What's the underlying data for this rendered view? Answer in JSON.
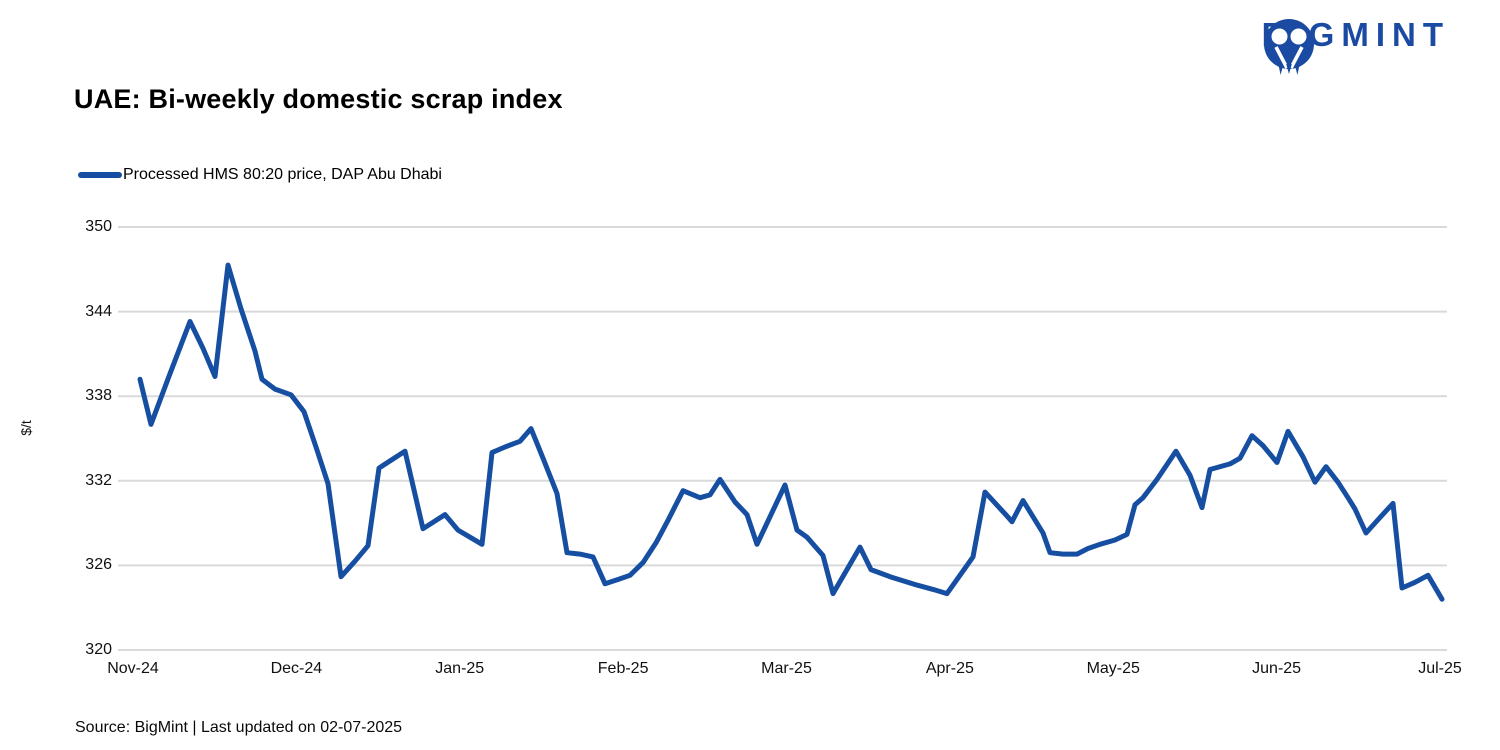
{
  "header": {
    "logo_text": "BIGMINT"
  },
  "title": "UAE: Bi-weekly domestic scrap index",
  "legend": {
    "label": "Processed HMS 80:20 price, DAP Abu Dhabi"
  },
  "footer": {
    "text": "Source: BigMint  |  Last updated on 02-07-2025"
  },
  "colors": {
    "line": "#164fa2",
    "logo": "#1b4aa2",
    "grid": "#d9d9d9",
    "text": "#000000"
  },
  "chart_data": {
    "type": "line",
    "title": "UAE: Bi-weekly domestic scrap index",
    "xlabel": "",
    "ylabel": "$/t",
    "ylim": [
      320,
      350
    ],
    "y_ticks": [
      320,
      326,
      332,
      338,
      344,
      350
    ],
    "x_tick_labels": [
      "Nov-24",
      "Dec-24",
      "Jan-25",
      "Feb-25",
      "Mar-25",
      "Apr-25",
      "May-25",
      "Jun-25",
      "Jul-25"
    ],
    "grid": "horizontal",
    "legend_position": "top-left",
    "series": [
      {
        "name": "Processed HMS 80:20 price, DAP Abu Dhabi",
        "color": "#164fa2",
        "unit": "$/t",
        "points": [
          [
            140,
            339.2
          ],
          [
            151,
            336.0
          ],
          [
            170,
            339.6
          ],
          [
            190,
            343.3
          ],
          [
            203,
            341.4
          ],
          [
            215,
            339.4
          ],
          [
            228,
            347.3
          ],
          [
            241,
            344.2
          ],
          [
            255,
            341.2
          ],
          [
            262,
            339.2
          ],
          [
            275,
            338.5
          ],
          [
            291,
            338.1
          ],
          [
            304,
            336.9
          ],
          [
            316,
            334.4
          ],
          [
            328,
            331.8
          ],
          [
            341,
            325.2
          ],
          [
            355,
            326.3
          ],
          [
            368,
            327.4
          ],
          [
            379,
            332.9
          ],
          [
            392,
            333.5
          ],
          [
            405,
            334.1
          ],
          [
            423,
            328.6
          ],
          [
            445,
            329.6
          ],
          [
            458,
            328.5
          ],
          [
            470,
            328.0
          ],
          [
            482,
            327.5
          ],
          [
            492,
            334.0
          ],
          [
            505,
            334.4
          ],
          [
            520,
            334.8
          ],
          [
            531,
            335.7
          ],
          [
            543,
            333.6
          ],
          [
            557,
            331.1
          ],
          [
            567,
            326.9
          ],
          [
            580,
            326.8
          ],
          [
            593,
            326.6
          ],
          [
            605,
            324.7
          ],
          [
            618,
            325.0
          ],
          [
            630,
            325.3
          ],
          [
            643,
            326.2
          ],
          [
            656,
            327.6
          ],
          [
            668,
            329.2
          ],
          [
            683,
            331.3
          ],
          [
            700,
            330.8
          ],
          [
            710,
            331.0
          ],
          [
            720,
            332.1
          ],
          [
            735,
            330.5
          ],
          [
            747,
            329.6
          ],
          [
            757,
            327.5
          ],
          [
            785,
            331.7
          ],
          [
            797,
            328.5
          ],
          [
            807,
            328.0
          ],
          [
            823,
            326.7
          ],
          [
            833,
            324.0
          ],
          [
            860,
            327.3
          ],
          [
            871,
            325.7
          ],
          [
            890,
            325.2
          ],
          [
            917,
            324.6
          ],
          [
            933,
            324.3
          ],
          [
            947,
            324.0
          ],
          [
            973,
            326.6
          ],
          [
            985,
            331.2
          ],
          [
            1007,
            329.5
          ],
          [
            1012,
            329.1
          ],
          [
            1023,
            330.6
          ],
          [
            1043,
            328.3
          ],
          [
            1050,
            326.9
          ],
          [
            1063,
            326.8
          ],
          [
            1077,
            326.8
          ],
          [
            1088,
            327.2
          ],
          [
            1100,
            327.5
          ],
          [
            1115,
            327.8
          ],
          [
            1127,
            328.2
          ],
          [
            1135,
            330.3
          ],
          [
            1143,
            330.8
          ],
          [
            1157,
            332.1
          ],
          [
            1176,
            334.1
          ],
          [
            1190,
            332.4
          ],
          [
            1202,
            330.1
          ],
          [
            1210,
            332.8
          ],
          [
            1230,
            333.2
          ],
          [
            1240,
            333.6
          ],
          [
            1252,
            335.2
          ],
          [
            1263,
            334.5
          ],
          [
            1277,
            333.3
          ],
          [
            1288,
            335.5
          ],
          [
            1303,
            333.7
          ],
          [
            1315,
            331.9
          ],
          [
            1326,
            333.0
          ],
          [
            1338,
            331.9
          ],
          [
            1348,
            330.8
          ],
          [
            1355,
            330.0
          ],
          [
            1366,
            328.3
          ],
          [
            1380,
            329.4
          ],
          [
            1393,
            330.4
          ],
          [
            1402,
            324.4
          ],
          [
            1415,
            324.8
          ],
          [
            1428,
            325.3
          ],
          [
            1442,
            323.6
          ]
        ]
      }
    ]
  }
}
